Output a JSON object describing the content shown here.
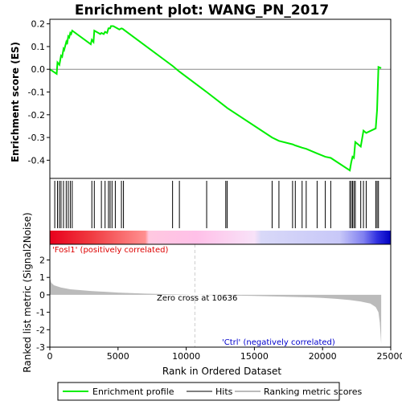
{
  "chart_data": {
    "type": "line",
    "title": "Enrichment plot: WANG_PN_2017",
    "top_panel": {
      "ylabel": "Enrichment score (ES)",
      "ylim": [
        -0.48,
        0.22
      ],
      "yticks": [
        -0.4,
        -0.3,
        -0.2,
        -0.1,
        0.0,
        0.1,
        0.2
      ],
      "ytick_labels": [
        "-0.4",
        "-0.3",
        "-0.2",
        "-0.1",
        "0.0",
        "0.1",
        "0.2"
      ],
      "series": [
        {
          "name": "Enrichment profile",
          "color": "#00ee00",
          "x": [
            0,
            500,
            560,
            700,
            820,
            900,
            1000,
            1050,
            1200,
            1260,
            1350,
            1420,
            1500,
            1560,
            1640,
            3000,
            3080,
            3200,
            3260,
            3700,
            3780,
            3950,
            4050,
            4200,
            4300,
            4350,
            4420,
            4480,
            4560,
            4650,
            4800,
            5100,
            5250,
            5350,
            5400,
            9000,
            9500,
            11500,
            12900,
            13000,
            16300,
            16800,
            17800,
            18000,
            18500,
            18800,
            19600,
            20200,
            20600,
            22000,
            22100,
            22200,
            22300,
            22400,
            22800,
            23000,
            23200,
            23900,
            24000,
            24100,
            24300
          ],
          "y": [
            0.0,
            -0.02,
            0.03,
            0.02,
            0.06,
            0.055,
            0.09,
            0.085,
            0.12,
            0.11,
            0.145,
            0.14,
            0.16,
            0.155,
            0.17,
            0.11,
            0.13,
            0.12,
            0.17,
            0.155,
            0.16,
            0.155,
            0.165,
            0.16,
            0.18,
            0.18,
            0.18,
            0.19,
            0.19,
            0.19,
            0.185,
            0.175,
            0.18,
            0.178,
            0.175,
            0.015,
            -0.01,
            -0.1,
            -0.165,
            -0.17,
            -0.3,
            -0.315,
            -0.33,
            -0.335,
            -0.345,
            -0.35,
            -0.37,
            -0.385,
            -0.39,
            -0.445,
            -0.41,
            -0.385,
            -0.39,
            -0.32,
            -0.34,
            -0.27,
            -0.28,
            -0.26,
            -0.18,
            0.01,
            0.005
          ]
        }
      ]
    },
    "hits": [
      360,
      560,
      700,
      820,
      1000,
      1200,
      1350,
      1500,
      1640,
      3080,
      3260,
      3780,
      4050,
      4300,
      4420,
      4560,
      4800,
      5250,
      5400,
      9000,
      9500,
      11500,
      12900,
      13000,
      16300,
      16800,
      17800,
      18000,
      18500,
      18800,
      19600,
      20200,
      20600,
      22000,
      22100,
      22200,
      22300,
      22400,
      22800,
      23000,
      23200,
      23900,
      24000,
      24100
    ],
    "bottom_panel": {
      "ylabel": "Ranked list metric (Signal2Noise)",
      "xlabel": "Rank in Ordered Dataset",
      "ylim": [
        -3,
        2.9
      ],
      "yticks": [
        -3,
        -2,
        -1,
        0,
        1,
        2
      ],
      "ytick_labels": [
        "-3",
        "-2",
        "-1",
        "0",
        "1",
        "2"
      ],
      "xlim": [
        0,
        25000
      ],
      "xticks": [
        0,
        5000,
        10000,
        15000,
        20000,
        25000
      ],
      "xtick_labels": [
        "0",
        "5000",
        "10000",
        "15000",
        "20000",
        "25000"
      ],
      "metric_profile": {
        "x": [
          0,
          100,
          300,
          800,
          1500,
          3000,
          5000,
          7000,
          9000,
          10636,
          13000,
          15000,
          17000,
          19000,
          20000,
          21000,
          22000,
          22800,
          23500,
          23900,
          24100,
          24200,
          24300
        ],
        "y": [
          1.0,
          0.7,
          0.55,
          0.42,
          0.32,
          0.22,
          0.13,
          0.07,
          0.03,
          0.0,
          -0.03,
          -0.06,
          -0.1,
          -0.14,
          -0.18,
          -0.23,
          -0.3,
          -0.38,
          -0.5,
          -0.7,
          -1.0,
          -1.6,
          -2.8
        ]
      },
      "zero_cross": 10636,
      "zero_cross_label": "Zero cross at 10636",
      "pos_label": "'Fosl1' (positively correlated)",
      "neg_label": "'Ctrl' (negatively correlated)"
    },
    "legend": {
      "items": [
        {
          "label": "Enrichment profile",
          "color": "#00ee00"
        },
        {
          "label": "Hits",
          "color": "#000000"
        },
        {
          "label": "Ranking metric scores",
          "color": "#bbbbbb"
        }
      ]
    },
    "colors": {
      "positive": "#ee0000",
      "negative": "#0000dd",
      "metric_fill": "#bbbbbb",
      "zero_line": "#cccccc"
    }
  }
}
